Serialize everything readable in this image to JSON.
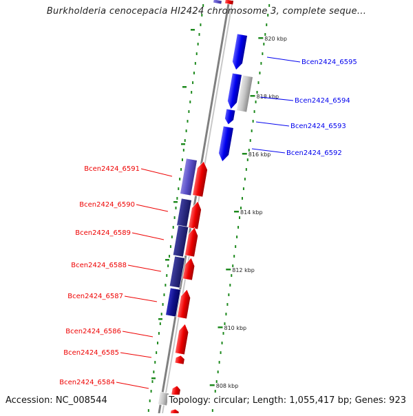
{
  "title": "Burkholderia cenocepacia HI2424 chromosome 3, complete seque...",
  "footer": {
    "accession": "Accession: NC_008544",
    "topology": "Topology: circular; Length: 1,055,417 bp; Genes: 923"
  },
  "colors": {
    "backbone": "#808080",
    "tick": "#1e8a1e",
    "forward_gene": "#0000ee",
    "reverse_gene": "#ee0000",
    "blast_hit": "#5a50c8",
    "gray_feature": "#b8b8b8"
  },
  "ruler_labels": [
    "820 kbp",
    "818 kbp",
    "816 kbp",
    "814 kbp",
    "812 kbp",
    "810 kbp",
    "808 kbp"
  ],
  "forward_genes": [
    "Bcen2424_6595",
    "Bcen2424_6594",
    "Bcen2424_6593",
    "Bcen2424_6592"
  ],
  "reverse_genes": [
    "Bcen2424_6591",
    "Bcen2424_6590",
    "Bcen2424_6589",
    "Bcen2424_6588",
    "Bcen2424_6587",
    "Bcen2424_6586",
    "Bcen2424_6585",
    "Bcen2424_6584"
  ]
}
